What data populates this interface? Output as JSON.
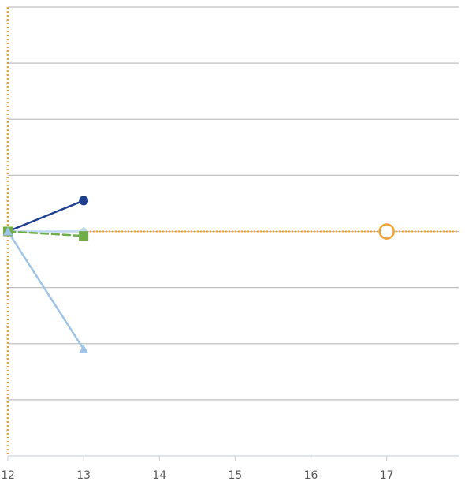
{
  "chart_data": {
    "type": "line",
    "title": "",
    "xlabel": "",
    "ylabel": "",
    "xlim": [
      12,
      17.95
    ],
    "ylim": [
      -4,
      4
    ],
    "x_ticks": [
      "12",
      "13",
      "14",
      "15",
      "16",
      "17"
    ],
    "y_gridlines": [
      -3,
      -2,
      -1,
      0,
      1,
      2,
      3,
      4
    ],
    "grid": true,
    "legend": "none",
    "reference_lines": {
      "vertical_x": 12,
      "horizontal_y": 0,
      "color": "#F0A030"
    },
    "series": [
      {
        "values_xy": [
          [
            12,
            0
          ],
          [
            13,
            0
          ]
        ],
        "color": "#BDD7EE",
        "marker": "diamond",
        "dash": "solid"
      },
      {
        "values_xy": [
          [
            12,
            0
          ],
          [
            13,
            0.55
          ]
        ],
        "color": "#1F3F8F",
        "marker": "circle",
        "dash": "solid"
      },
      {
        "values_xy": [
          [
            12,
            0
          ],
          [
            13,
            -0.08
          ]
        ],
        "color": "#70AD47",
        "marker": "square",
        "dash": "dash"
      },
      {
        "values_xy": [
          [
            12,
            0
          ],
          [
            13,
            -2.1
          ]
        ],
        "color": "#9DC3E6",
        "marker": "triangle",
        "dash": "solid"
      }
    ],
    "highlight_point": {
      "x": 17,
      "y": 0,
      "color": "#F0A030",
      "marker": "open-circle"
    },
    "colors": {
      "grid": "#BFBFBF",
      "axis": "#BFBFBF",
      "tick_text": "#595959"
    }
  }
}
